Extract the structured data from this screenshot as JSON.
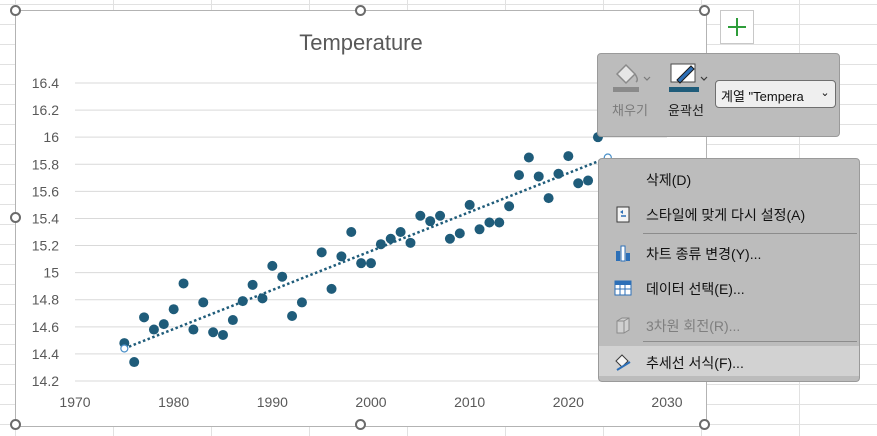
{
  "chart_data": {
    "type": "scatter",
    "title": "Temperature",
    "xlim": [
      1970,
      2030
    ],
    "ylim": [
      14.2,
      16.4
    ],
    "x_ticks": [
      "1970",
      "1980",
      "1990",
      "2000",
      "2010",
      "2020",
      "2030"
    ],
    "y_ticks": [
      "14.2",
      "14.4",
      "14.6",
      "14.8",
      "15",
      "15.2",
      "15.4",
      "15.6",
      "15.8",
      "16",
      "16.2",
      "16.4"
    ],
    "grid": "horizontal",
    "point_color": "#1f5c7a",
    "trendline": {
      "type": "linear",
      "style": "dotted",
      "color": "#1f5c7a",
      "x": [
        1975,
        2024
      ],
      "y": [
        14.44,
        15.85
      ]
    },
    "series": [
      {
        "x": [
          1975,
          1976,
          1977,
          1978,
          1979,
          1980,
          1981,
          1982,
          1983,
          1984,
          1985,
          1986,
          1987,
          1988,
          1989,
          1990,
          1991,
          1992,
          1993,
          1995,
          1996,
          1997,
          1998,
          1999,
          2000,
          2001,
          2002,
          2003,
          2004,
          2005,
          2006,
          2007,
          2008,
          2009,
          2010,
          2011,
          2012,
          2013,
          2014,
          2015,
          2016,
          2017,
          2018,
          2019,
          2020,
          2021,
          2022,
          2023
        ],
        "y": [
          14.48,
          14.34,
          14.67,
          14.58,
          14.62,
          14.73,
          14.92,
          14.58,
          14.78,
          14.56,
          14.54,
          14.65,
          14.79,
          14.91,
          14.81,
          15.05,
          14.97,
          14.68,
          14.78,
          15.15,
          14.88,
          15.12,
          15.3,
          15.07,
          15.07,
          15.21,
          15.25,
          15.3,
          15.22,
          15.42,
          15.38,
          15.42,
          15.25,
          15.29,
          15.5,
          15.32,
          15.37,
          15.37,
          15.49,
          15.72,
          15.85,
          15.71,
          15.55,
          15.73,
          15.86,
          15.66,
          15.68,
          16.0
        ]
      }
    ]
  },
  "toolbar": {
    "fill_label": "채우기",
    "outline_label": "윤곽선",
    "series_selector": "계열 \"Tempera",
    "fill_icon": "paint-bucket-icon",
    "outline_icon": "pen-icon"
  },
  "context_menu": {
    "items": [
      {
        "label": "삭제(D)",
        "icon": "delete-icon",
        "enabled": true
      },
      {
        "label": "스타일에 맞게 다시 설정(A)",
        "icon": "reset-style-icon",
        "enabled": true
      },
      {
        "label": "차트 종류 변경(Y)...",
        "icon": "bar-chart-icon",
        "enabled": true
      },
      {
        "label": "데이터 선택(E)...",
        "icon": "table-icon",
        "enabled": true
      },
      {
        "label": "3차원 회전(R)...",
        "icon": "cube-icon",
        "enabled": false
      },
      {
        "label": "추세선 서식(F)...",
        "icon": "format-trendline-icon",
        "enabled": true
      }
    ]
  },
  "colors": {
    "accent": "#1f5c7a",
    "add_button": "#2e9d3a",
    "outline_swatch": "#1f5c7a",
    "fill_swatch": "#8a8a8a"
  }
}
